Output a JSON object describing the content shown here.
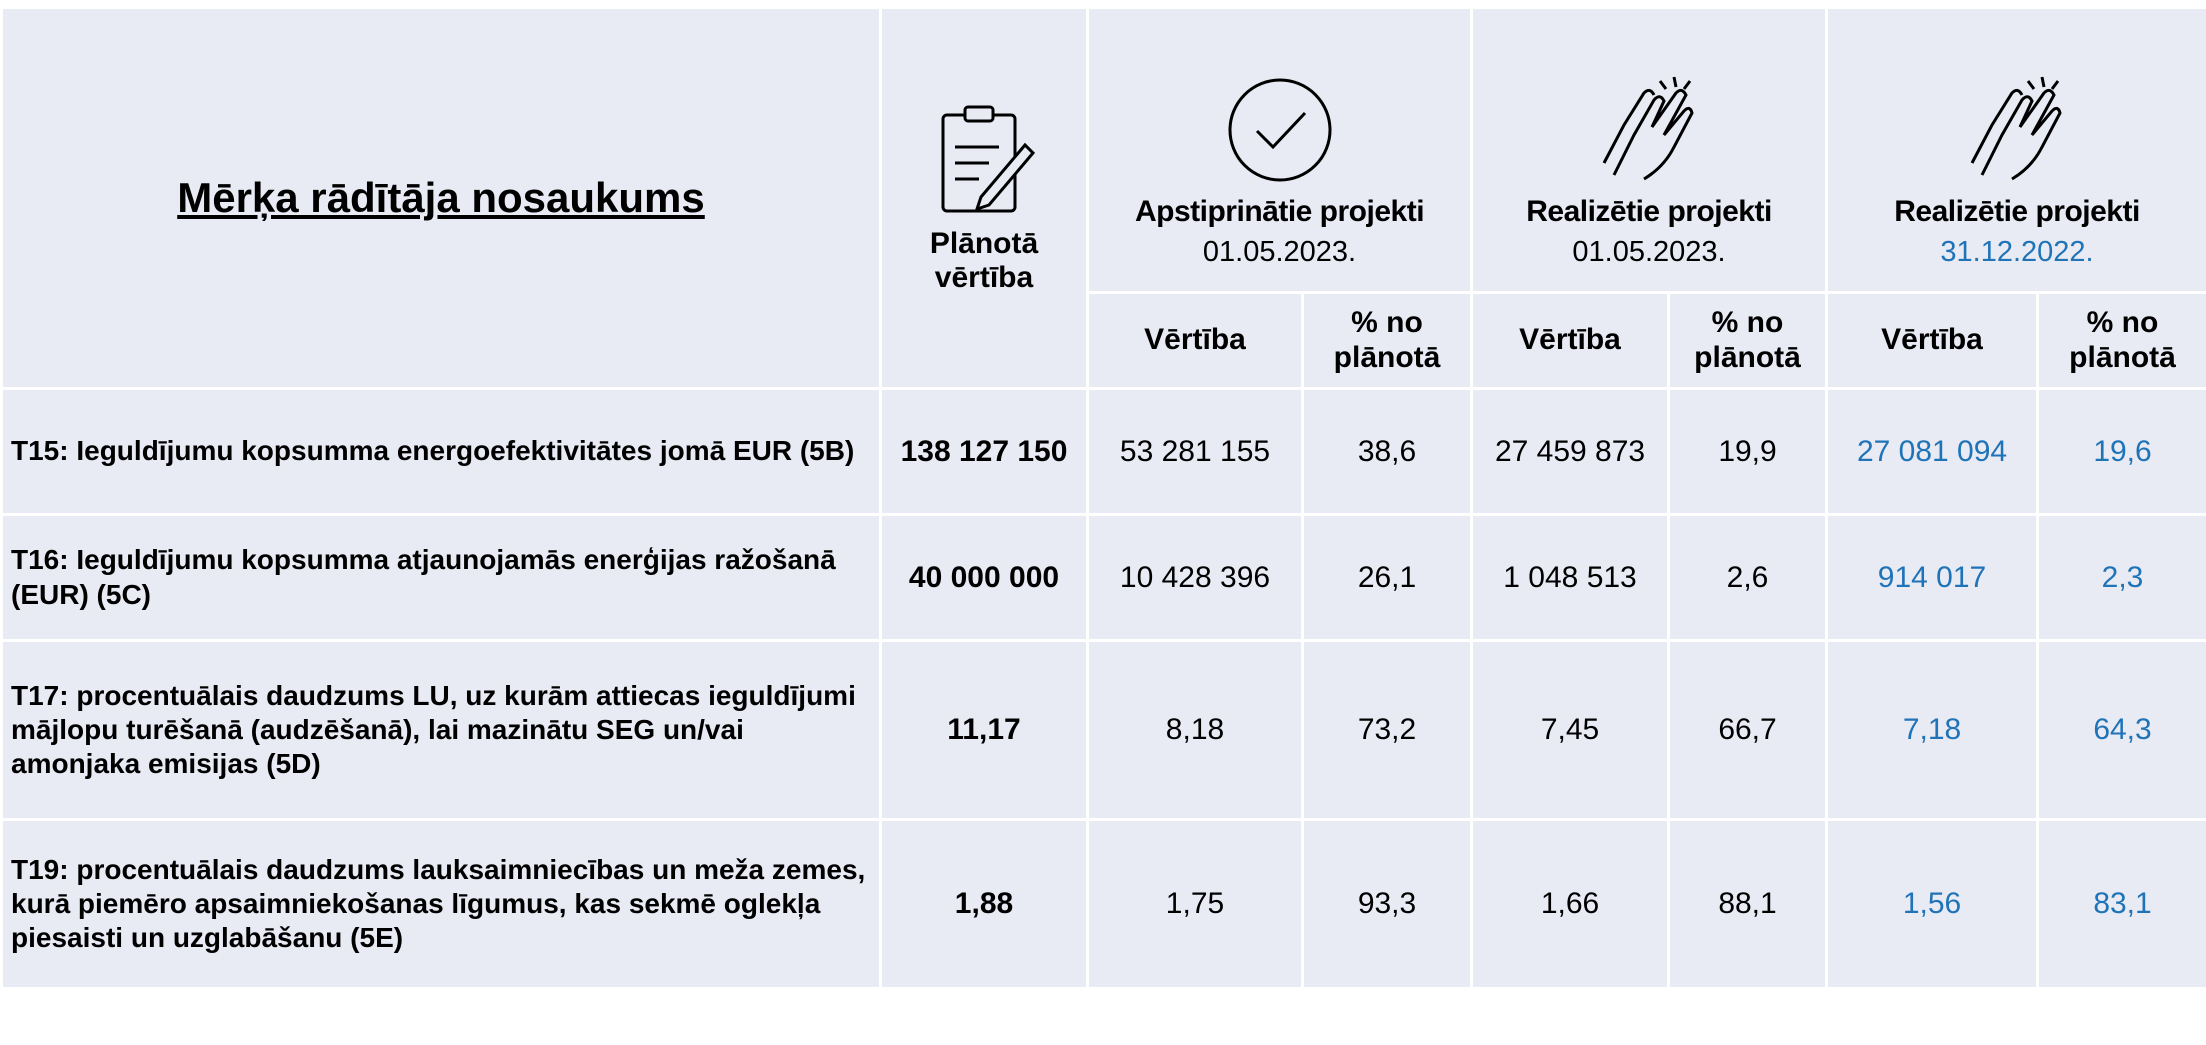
{
  "header": {
    "title": "Mērķa rādītāja nosaukums",
    "planned": "Plānotā vērtība",
    "groups": [
      {
        "title": "Apstiprinātie projekti",
        "date": "01.05.2023.",
        "columns": [
          "Vērtība",
          "% no plānotā"
        ]
      },
      {
        "title": "Realizētie projekti",
        "date": "01.05.2023.",
        "columns": [
          "Vērtība",
          "% no plānotā"
        ]
      },
      {
        "title": "Realizētie projekti",
        "date": "31.12.2022.",
        "columns": [
          "Vērtība",
          "% no plānotā"
        ]
      }
    ]
  },
  "table": {
    "rows": [
      {
        "name": "T15: Ieguldījumu kopsumma energoefektivitātes jomā EUR (5B)",
        "planned": "138 127 150",
        "values": [
          "53 281 155",
          "38,6",
          "27 459 873",
          "19,9",
          "27 081 094",
          "19,6"
        ]
      },
      {
        "name": "T16: Ieguldījumu kopsumma atjaunojamās enerģijas ražošanā (EUR) (5C)",
        "planned": "40 000 000",
        "values": [
          "10 428 396",
          "26,1",
          "1 048 513",
          "2,6",
          "914 017",
          "2,3"
        ]
      },
      {
        "name": "T17: procentuālais daudzums LU, uz kurām attiecas ieguldījumi mājlopu turēšanā (audzēšanā), lai mazinātu SEG un/vai amonjaka emisijas (5D)",
        "planned": "11,17",
        "values": [
          "8,18",
          "73,2",
          "7,45",
          "66,7",
          "7,18",
          "64,3"
        ]
      },
      {
        "name": "T19: procentuālais daudzums lauksaimniecības un meža zemes, kurā piemēro apsaimniekošanas līgumus, kas sekmē oglekļa piesaisti un uzglabāšanu (5E)",
        "planned": "1,88",
        "values": [
          "1,75",
          "93,3",
          "1,66",
          "88,1",
          "1,56",
          "83,1"
        ]
      }
    ]
  }
}
